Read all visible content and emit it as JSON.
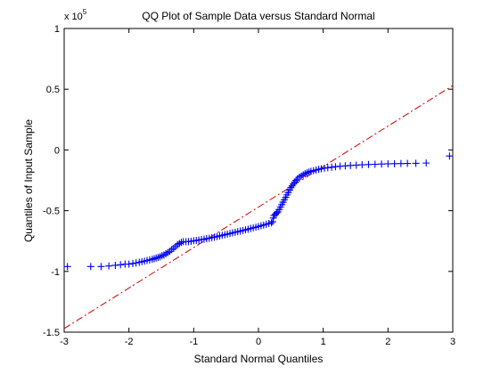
{
  "chart_data": {
    "type": "scatter",
    "title": "QQ Plot of Sample Data versus Standard Normal",
    "xlabel": "Standard Normal Quantiles",
    "ylabel": "Quantiles of Input Sample",
    "y_exponent_label": "x 10",
    "y_exponent_power": "5",
    "xlim": [
      -3,
      3
    ],
    "ylim": [
      -1.5,
      1
    ],
    "x_ticks": [
      -3,
      -2,
      -1,
      0,
      1,
      2,
      3
    ],
    "x_tick_labels": [
      "-3",
      "-2",
      "-1",
      "0",
      "1",
      "2",
      "3"
    ],
    "y_ticks": [
      -1.5,
      -1,
      -0.5,
      0,
      0.5,
      1
    ],
    "y_tick_labels": [
      "-1.5",
      "-1",
      "-0.5",
      "0",
      "0.5",
      "1"
    ],
    "grid": false,
    "marker": "+",
    "marker_color": "#0000ff",
    "reference_line_color": "#cc0000",
    "reference_line": {
      "x": [
        -3,
        3
      ],
      "y": [
        -1.47,
        0.53
      ]
    },
    "series": [
      {
        "points": [
          [
            -2.95,
            -0.96
          ],
          [
            -2.59,
            -0.96
          ],
          [
            -2.43,
            -0.96
          ],
          [
            -2.31,
            -0.955
          ],
          [
            -2.21,
            -0.95
          ],
          [
            -2.13,
            -0.945
          ],
          [
            -2.06,
            -0.94
          ],
          [
            -2.0,
            -0.94
          ],
          [
            -1.94,
            -0.935
          ],
          [
            -1.89,
            -0.93
          ],
          [
            -1.84,
            -0.925
          ],
          [
            -1.8,
            -0.92
          ],
          [
            -1.76,
            -0.915
          ],
          [
            -1.72,
            -0.91
          ],
          [
            -1.68,
            -0.905
          ],
          [
            -1.64,
            -0.9
          ],
          [
            -1.61,
            -0.895
          ],
          [
            -1.58,
            -0.89
          ],
          [
            -1.55,
            -0.885
          ],
          [
            -1.52,
            -0.88
          ],
          [
            -1.49,
            -0.87
          ],
          [
            -1.46,
            -0.865
          ],
          [
            -1.43,
            -0.855
          ],
          [
            -1.4,
            -0.845
          ],
          [
            -1.37,
            -0.835
          ],
          [
            -1.34,
            -0.82
          ],
          [
            -1.31,
            -0.81
          ],
          [
            -1.28,
            -0.795
          ],
          [
            -1.25,
            -0.78
          ],
          [
            -1.22,
            -0.77
          ],
          [
            -1.19,
            -0.76
          ],
          [
            -1.16,
            -0.755
          ],
          [
            -1.12,
            -0.755
          ],
          [
            -1.08,
            -0.755
          ],
          [
            -1.04,
            -0.752
          ],
          [
            -1.0,
            -0.748
          ],
          [
            -0.96,
            -0.745
          ],
          [
            -0.92,
            -0.742
          ],
          [
            -0.88,
            -0.738
          ],
          [
            -0.84,
            -0.735
          ],
          [
            -0.8,
            -0.73
          ],
          [
            -0.76,
            -0.727
          ],
          [
            -0.72,
            -0.722
          ],
          [
            -0.68,
            -0.718
          ],
          [
            -0.64,
            -0.713
          ],
          [
            -0.6,
            -0.708
          ],
          [
            -0.56,
            -0.703
          ],
          [
            -0.52,
            -0.698
          ],
          [
            -0.48,
            -0.693
          ],
          [
            -0.44,
            -0.688
          ],
          [
            -0.4,
            -0.683
          ],
          [
            -0.36,
            -0.678
          ],
          [
            -0.32,
            -0.673
          ],
          [
            -0.28,
            -0.668
          ],
          [
            -0.24,
            -0.663
          ],
          [
            -0.2,
            -0.658
          ],
          [
            -0.16,
            -0.652
          ],
          [
            -0.12,
            -0.646
          ],
          [
            -0.08,
            -0.641
          ],
          [
            -0.04,
            -0.636
          ],
          [
            0.0,
            -0.63
          ],
          [
            0.04,
            -0.624
          ],
          [
            0.08,
            -0.618
          ],
          [
            0.12,
            -0.612
          ],
          [
            0.16,
            -0.606
          ],
          [
            0.2,
            -0.6
          ],
          [
            0.22,
            -0.59
          ],
          [
            0.23,
            -0.56
          ],
          [
            0.24,
            -0.54
          ],
          [
            0.26,
            -0.53
          ],
          [
            0.28,
            -0.52
          ],
          [
            0.3,
            -0.51
          ],
          [
            0.32,
            -0.49
          ],
          [
            0.34,
            -0.47
          ],
          [
            0.36,
            -0.45
          ],
          [
            0.38,
            -0.43
          ],
          [
            0.4,
            -0.41
          ],
          [
            0.42,
            -0.39
          ],
          [
            0.44,
            -0.37
          ],
          [
            0.46,
            -0.35
          ],
          [
            0.48,
            -0.33
          ],
          [
            0.5,
            -0.31
          ],
          [
            0.52,
            -0.295
          ],
          [
            0.54,
            -0.28
          ],
          [
            0.56,
            -0.265
          ],
          [
            0.58,
            -0.25
          ],
          [
            0.6,
            -0.24
          ],
          [
            0.63,
            -0.225
          ],
          [
            0.66,
            -0.215
          ],
          [
            0.69,
            -0.205
          ],
          [
            0.72,
            -0.195
          ],
          [
            0.75,
            -0.188
          ],
          [
            0.78,
            -0.182
          ],
          [
            0.81,
            -0.176
          ],
          [
            0.85,
            -0.17
          ],
          [
            0.89,
            -0.165
          ],
          [
            0.93,
            -0.16
          ],
          [
            0.97,
            -0.155
          ],
          [
            1.02,
            -0.15
          ],
          [
            1.07,
            -0.146
          ],
          [
            1.13,
            -0.142
          ],
          [
            1.19,
            -0.138
          ],
          [
            1.26,
            -0.134
          ],
          [
            1.34,
            -0.131
          ],
          [
            1.42,
            -0.128
          ],
          [
            1.51,
            -0.125
          ],
          [
            1.6,
            -0.122
          ],
          [
            1.7,
            -0.12
          ],
          [
            1.8,
            -0.118
          ],
          [
            1.9,
            -0.116
          ],
          [
            2.0,
            -0.114
          ],
          [
            2.1,
            -0.113
          ],
          [
            2.2,
            -0.112
          ],
          [
            2.3,
            -0.111
          ],
          [
            2.43,
            -0.11
          ],
          [
            2.59,
            -0.108
          ],
          [
            2.95,
            -0.05
          ]
        ]
      }
    ]
  }
}
